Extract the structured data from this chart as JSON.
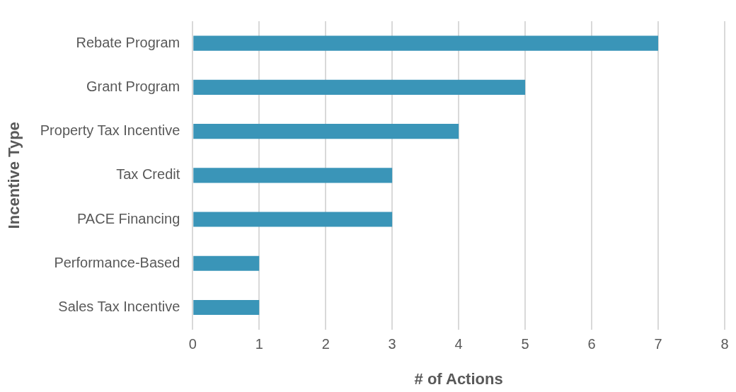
{
  "chart_data": {
    "type": "bar",
    "orientation": "horizontal",
    "xlabel": "# of Actions",
    "ylabel": "Incentive Type",
    "categories": [
      "Rebate Program",
      "Grant Program",
      "Property Tax Incentive",
      "Tax Credit",
      "PACE Financing",
      "Performance-Based",
      "Sales Tax Incentive"
    ],
    "values": [
      7,
      5,
      4,
      3,
      3,
      1,
      1
    ],
    "color": "#3a95b8",
    "xlim": [
      0,
      8
    ],
    "xticks": [
      0,
      1,
      2,
      3,
      4,
      5,
      6,
      7,
      8
    ],
    "grid": "x",
    "legend": false
  }
}
